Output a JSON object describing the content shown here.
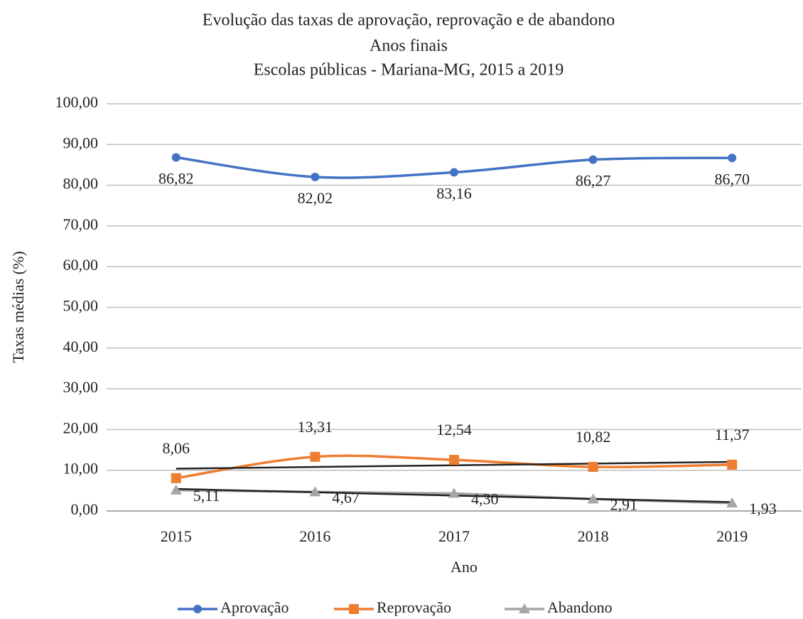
{
  "chart_data": {
    "type": "line",
    "title": "Evolução das taxas de aprovação, reprovação e de abandono",
    "subtitle": [
      "Anos finais",
      "Escolas públicas  - Mariana-MG, 2015 a 2019"
    ],
    "x_label": "Ano",
    "y_label": "Taxas médias (%)",
    "categories": [
      "2015",
      "2016",
      "2017",
      "2018",
      "2019"
    ],
    "series": [
      {
        "name": "Aprovação",
        "color": "#4472c4",
        "marker": "circle",
        "smooth": true,
        "values": [
          86.82,
          82.02,
          83.16,
          86.27,
          86.7
        ],
        "value_labels": [
          "86,82",
          "82,02",
          "83,16",
          "86,27",
          "86,70"
        ]
      },
      {
        "name": "Reprovação",
        "color": "#ed7d31",
        "marker": "square",
        "smooth": true,
        "trendline": true,
        "values": [
          8.06,
          13.31,
          12.54,
          10.82,
          11.37
        ],
        "value_labels": [
          "8,06",
          "13,31",
          "12,54",
          "10,82",
          "11,37"
        ]
      },
      {
        "name": "Abandono",
        "color": "#a5a5a5",
        "marker": "triangle",
        "smooth": false,
        "trendline": true,
        "values": [
          5.11,
          4.67,
          4.3,
          2.91,
          1.93
        ],
        "value_labels": [
          "5,11",
          "4,67",
          "4,30",
          "2,91",
          "1,93"
        ]
      }
    ],
    "ylim": [
      0,
      100
    ],
    "yticks": [
      {
        "value": 0,
        "label": "0,00"
      },
      {
        "value": 10,
        "label": "10,00"
      },
      {
        "value": 20,
        "label": "20,00"
      },
      {
        "value": 30,
        "label": "30,00"
      },
      {
        "value": 40,
        "label": "40,00"
      },
      {
        "value": 50,
        "label": "50,00"
      },
      {
        "value": 60,
        "label": "60,00"
      },
      {
        "value": 70,
        "label": "70,00"
      },
      {
        "value": 80,
        "label": "80,00"
      },
      {
        "value": 90,
        "label": "90,00"
      },
      {
        "value": 100,
        "label": "100,00"
      }
    ],
    "grid": true,
    "legend": "bottom"
  }
}
